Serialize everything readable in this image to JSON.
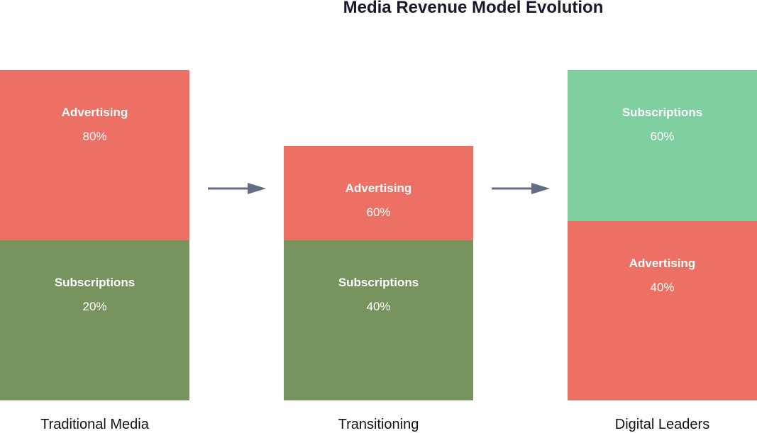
{
  "title": "Media Revenue Model Evolution",
  "colors": {
    "advertising": "#ec7063",
    "subscriptions_traditional": "#77945f",
    "subscriptions_digital": "#7fcfa0",
    "arrow": "#636b87"
  },
  "columns": [
    {
      "caption": "Traditional Media",
      "segments": [
        {
          "label": "Advertising",
          "value": "80%"
        },
        {
          "label": "Subscriptions",
          "value": "20%"
        }
      ]
    },
    {
      "caption": "Transitioning",
      "segments": [
        {
          "label": "Advertising",
          "value": "60%"
        },
        {
          "label": "Subscriptions",
          "value": "40%"
        }
      ]
    },
    {
      "caption": "Digital Leaders",
      "segments": [
        {
          "label": "Subscriptions",
          "value": "60%"
        },
        {
          "label": "Advertising",
          "value": "40%"
        }
      ]
    }
  ]
}
